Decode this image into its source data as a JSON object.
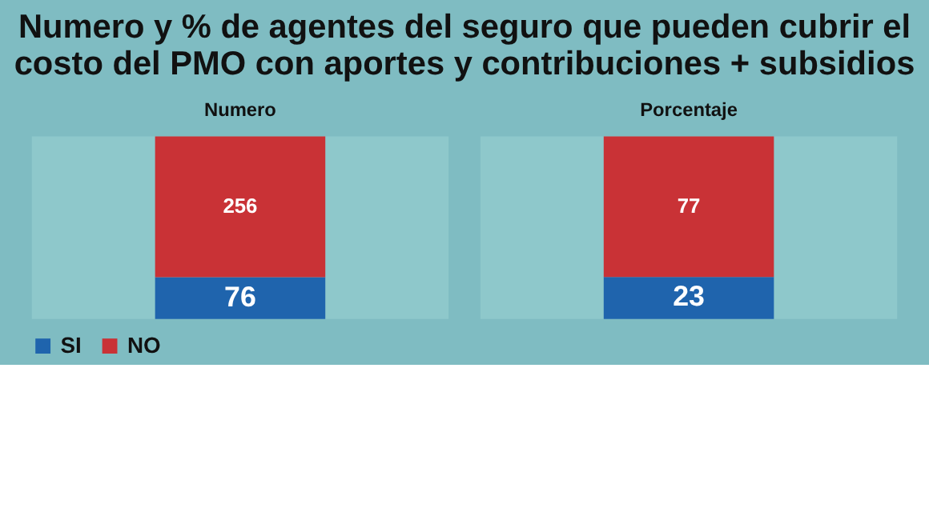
{
  "chart_data": [
    {
      "type": "bar",
      "title": "Numero",
      "annotations": [
        "Numero y % de agentes del seguro que pueden cubrir el\ncosto del PMO con aportes y contribuciones + subsidios"
      ],
      "categories": [
        null
      ],
      "stacked": true,
      "data_labels": true,
      "legend": "bottom",
      "series": [
        {
          "name": "SI",
          "color": "#1f64ad",
          "values": [
            76
          ]
        },
        {
          "name": "NO",
          "color": "#c93236",
          "values": [
            256
          ]
        }
      ]
    },
    {
      "type": "bar",
      "title": "Porcentaje",
      "categories": [
        null
      ],
      "stacked": true,
      "data_labels": true,
      "legend": "bottom",
      "series": [
        {
          "name": "SI",
          "color": "#1f64ad",
          "values": [
            23
          ]
        },
        {
          "name": "NO",
          "color": "#c93236",
          "values": [
            77
          ]
        }
      ]
    }
  ]
}
